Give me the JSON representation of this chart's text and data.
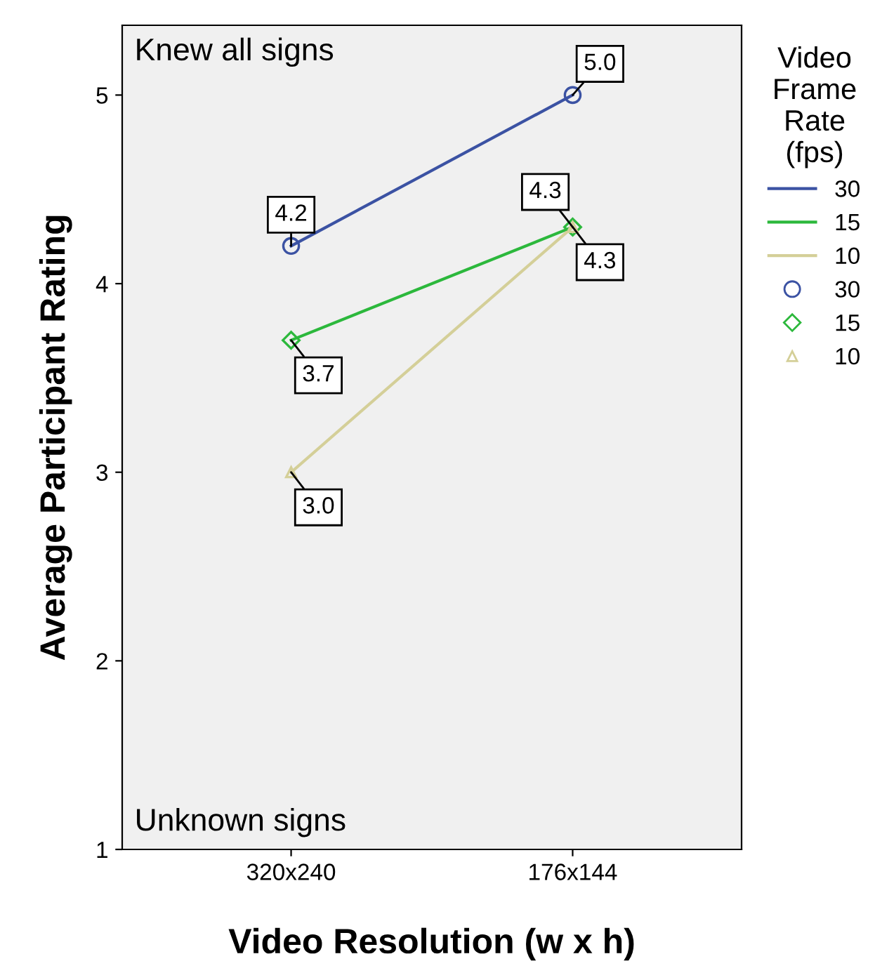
{
  "chart_data": {
    "type": "line",
    "xlabel": "Video Resolution (w x h)",
    "ylabel": "Average Participant Rating",
    "legend_title": "Video\nFrame\nRate\n(fps)",
    "categories": [
      "320x240",
      "176x144"
    ],
    "series": [
      {
        "name": "30",
        "color": "#3b52a3",
        "marker": "circle",
        "values": [
          4.2,
          5.0
        ],
        "value_labels": [
          "4.2",
          "5.0"
        ]
      },
      {
        "name": "15",
        "color": "#2cb83c",
        "marker": "diamond",
        "values": [
          3.7,
          4.3
        ],
        "value_labels": [
          "3.7",
          "4.3"
        ]
      },
      {
        "name": "10",
        "color": "#d4cf98",
        "marker": "triangle",
        "values": [
          3.0,
          4.3
        ],
        "value_labels": [
          "3.0",
          "4.3"
        ]
      }
    ],
    "ylim": [
      1,
      5.37
    ],
    "yticks": [
      1,
      2,
      3,
      4,
      5
    ],
    "grid": false,
    "legend": "right",
    "line_style": "solid",
    "annotations": [
      "Knew all signs",
      "Unknown signs"
    ]
  }
}
